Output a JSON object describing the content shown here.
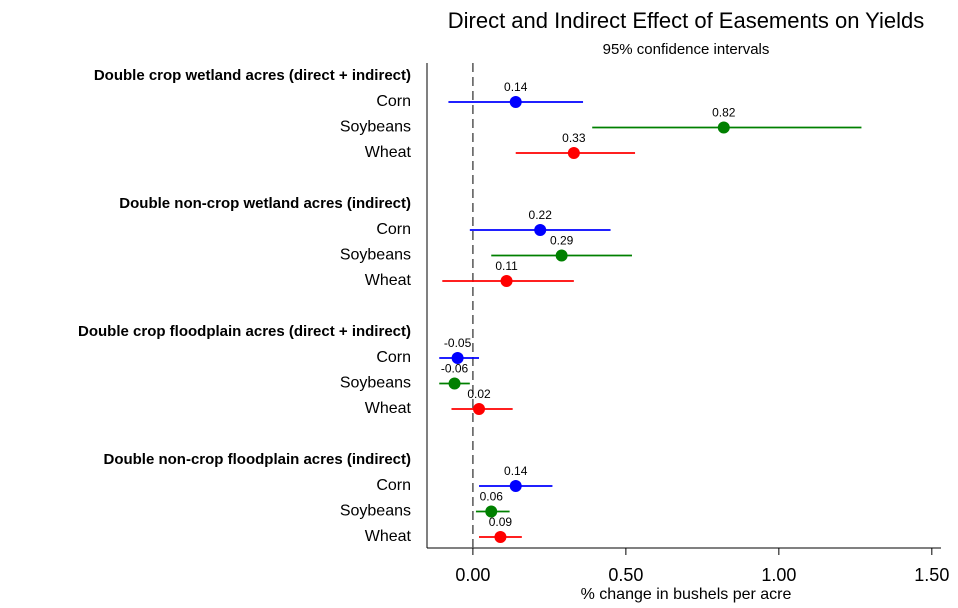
{
  "chart_data": {
    "type": "dot-whisker",
    "title": "Direct and Indirect Effect of Easements on Yields",
    "subtitle": "95% confidence intervals",
    "x_label": "% change in bushels per acre",
    "xlim": [
      -0.15,
      1.53
    ],
    "xticks": [
      {
        "value": 0,
        "label": "0.00"
      },
      {
        "value": 0.5,
        "label": "0.50"
      },
      {
        "value": 1,
        "label": "1.00"
      },
      {
        "value": 1.5,
        "label": "1.50"
      }
    ],
    "groups": [
      {
        "name": "Double crop wetland acres (direct + indirect)",
        "rows": [
          {
            "label": "Corn",
            "color": "#0000ff",
            "value": 0.14,
            "lower": -0.08,
            "upper": 0.36
          },
          {
            "label": "Soybeans",
            "color": "#008000",
            "value": 0.82,
            "lower": 0.39,
            "upper": 1.27
          },
          {
            "label": "Wheat",
            "color": "#ff0000",
            "value": 0.33,
            "lower": 0.14,
            "upper": 0.53
          }
        ]
      },
      {
        "name": "Double non-crop wetland acres (indirect)",
        "rows": [
          {
            "label": "Corn",
            "color": "#0000ff",
            "value": 0.22,
            "lower": -0.01,
            "upper": 0.45
          },
          {
            "label": "Soybeans",
            "color": "#008000",
            "value": 0.29,
            "lower": 0.06,
            "upper": 0.52
          },
          {
            "label": "Wheat",
            "color": "#ff0000",
            "value": 0.11,
            "lower": -0.1,
            "upper": 0.33
          }
        ]
      },
      {
        "name": "Double crop floodplain acres (direct + indirect)",
        "rows": [
          {
            "label": "Corn",
            "color": "#0000ff",
            "value": -0.05,
            "lower": -0.11,
            "upper": 0.02
          },
          {
            "label": "Soybeans",
            "color": "#008000",
            "value": -0.06,
            "lower": -0.11,
            "upper": -0.01
          },
          {
            "label": "Wheat",
            "color": "#ff0000",
            "value": 0.02,
            "lower": -0.07,
            "upper": 0.13
          }
        ]
      },
      {
        "name": "Double non-crop floodplain acres (indirect)",
        "rows": [
          {
            "label": "Corn",
            "color": "#0000ff",
            "value": 0.14,
            "lower": 0.02,
            "upper": 0.26
          },
          {
            "label": "Soybeans",
            "color": "#008000",
            "value": 0.06,
            "lower": 0.01,
            "upper": 0.12
          },
          {
            "label": "Wheat",
            "color": "#ff0000",
            "value": 0.09,
            "lower": 0.02,
            "upper": 0.16
          }
        ]
      }
    ]
  }
}
